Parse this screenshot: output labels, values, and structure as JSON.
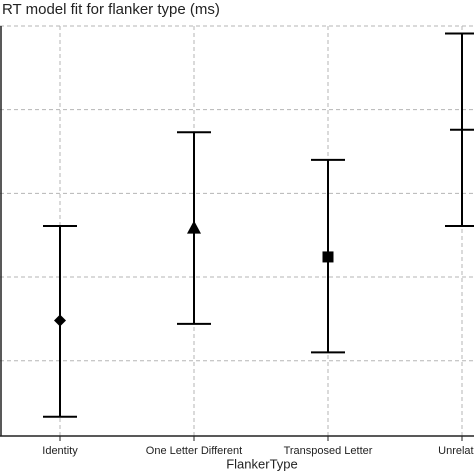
{
  "chart_data": {
    "type": "errorbar",
    "title": "RT model fit for flanker type (ms)",
    "x_label": "FlankerType",
    "categories": [
      "Identity",
      "One Letter Different",
      "Transposed Letter",
      "Unrelated"
    ],
    "values": [
      1.48,
      2.59,
      2.24,
      3.76
    ],
    "lower": [
      0.33,
      1.44,
      1.1,
      2.61
    ],
    "upper": [
      2.61,
      3.73,
      3.4,
      4.91
    ],
    "color": "#000000",
    "ylim": [
      0.1,
      5.0
    ],
    "yticks": [
      1,
      2,
      3,
      4,
      5
    ],
    "grid": true
  }
}
